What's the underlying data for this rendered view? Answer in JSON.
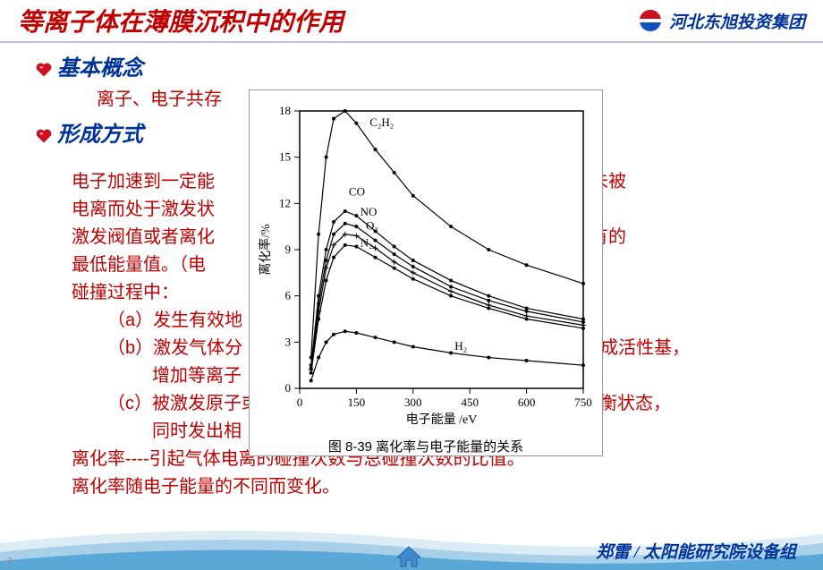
{
  "header": {
    "title": "等离子体在薄膜沉积中的作用",
    "company": "河北东旭投资集团"
  },
  "sections": {
    "s1": {
      "title": "基本概念",
      "line1": "离子、电子共存"
    },
    "s2": {
      "title": "形成方式",
      "l1a": "电子加速到一定能",
      "l1b": "离或者激发（未被",
      "l2": "电离而处于激发状",
      "l3a": "激发阀值或者离化",
      "l3b": "电离的电子具有的",
      "l4": "最低能量值。（电",
      "l5": "碰撞过程中：",
      "l6": "（a）发生有效地",
      "l7a": "（b）激发气体分",
      "l7b": "子等，形成活性基，",
      "l8": "增加等离子",
      "l9a": "（c）被激发原子或",
      "l9b": "，返回平衡状态，",
      "l10": "同时发出相",
      "l11": "离化率----引起气体电离的碰撞次数与总碰撞次数的比值。",
      "l12": "离化率随电子能量的不同而变化。"
    }
  },
  "chart": {
    "caption": "图 8-39  离化率与电子能量的关系",
    "xlabel": "电子能量 /eV",
    "ylabel": "离化率/%",
    "xlim": [
      0,
      750
    ],
    "ylim": [
      0,
      18
    ],
    "xticks": [
      0,
      150,
      300,
      450,
      600,
      750
    ],
    "yticks": [
      0,
      3,
      6,
      9,
      12,
      15,
      18
    ],
    "background": "#ffffff",
    "axis_color": "#000000",
    "series": [
      {
        "name": "C2H2",
        "label": "C₂H₂",
        "label_pos": [
          185,
          17
        ],
        "marker": "dot",
        "pts": [
          [
            30,
            2
          ],
          [
            50,
            10
          ],
          [
            70,
            15
          ],
          [
            90,
            17.5
          ],
          [
            120,
            18
          ],
          [
            150,
            17.2
          ],
          [
            200,
            15.5
          ],
          [
            250,
            14
          ],
          [
            300,
            12.5
          ],
          [
            400,
            10.5
          ],
          [
            500,
            9
          ],
          [
            600,
            8
          ],
          [
            750,
            6.8
          ]
        ]
      },
      {
        "name": "CO",
        "label": "CO",
        "label_pos": [
          130,
          12.5
        ],
        "marker": "dot",
        "pts": [
          [
            30,
            1.5
          ],
          [
            50,
            6
          ],
          [
            70,
            9
          ],
          [
            90,
            10.8
          ],
          [
            120,
            11.5
          ],
          [
            150,
            11.2
          ],
          [
            200,
            10.2
          ],
          [
            250,
            9.2
          ],
          [
            300,
            8.3
          ],
          [
            400,
            7
          ],
          [
            500,
            6
          ],
          [
            600,
            5.2
          ],
          [
            750,
            4.5
          ]
        ]
      },
      {
        "name": "NO",
        "label": "NO",
        "label_pos": [
          160,
          11.2
        ],
        "marker": "dot",
        "pts": [
          [
            30,
            1.3
          ],
          [
            50,
            5.5
          ],
          [
            70,
            8.3
          ],
          [
            90,
            10
          ],
          [
            120,
            10.7
          ],
          [
            150,
            10.5
          ],
          [
            200,
            9.6
          ],
          [
            250,
            8.7
          ],
          [
            300,
            7.9
          ],
          [
            400,
            6.6
          ],
          [
            500,
            5.7
          ],
          [
            600,
            5
          ],
          [
            750,
            4.3
          ]
        ]
      },
      {
        "name": "O2",
        "label": "O₂",
        "label_pos": [
          175,
          10.3
        ],
        "marker": "plus",
        "pts": [
          [
            30,
            1.2
          ],
          [
            50,
            5
          ],
          [
            70,
            7.8
          ],
          [
            90,
            9.3
          ],
          [
            120,
            10
          ],
          [
            150,
            9.9
          ],
          [
            200,
            9.1
          ],
          [
            250,
            8.2
          ],
          [
            300,
            7.5
          ],
          [
            400,
            6.3
          ],
          [
            500,
            5.4
          ],
          [
            600,
            4.7
          ],
          [
            750,
            4.1
          ]
        ]
      },
      {
        "name": "N2",
        "label": "N₂",
        "label_pos": [
          160,
          9.2
        ],
        "marker": "dot",
        "pts": [
          [
            30,
            1
          ],
          [
            50,
            4.5
          ],
          [
            70,
            7
          ],
          [
            90,
            8.5
          ],
          [
            120,
            9.3
          ],
          [
            150,
            9.2
          ],
          [
            200,
            8.5
          ],
          [
            250,
            7.8
          ],
          [
            300,
            7.1
          ],
          [
            400,
            6
          ],
          [
            500,
            5.2
          ],
          [
            600,
            4.5
          ],
          [
            750,
            3.9
          ]
        ]
      },
      {
        "name": "H2",
        "label": "H₂",
        "label_pos": [
          410,
          2.5
        ],
        "marker": "dot",
        "pts": [
          [
            30,
            0.5
          ],
          [
            50,
            2
          ],
          [
            70,
            3
          ],
          [
            90,
            3.5
          ],
          [
            120,
            3.7
          ],
          [
            150,
            3.6
          ],
          [
            200,
            3.3
          ],
          [
            250,
            3
          ],
          [
            300,
            2.7
          ],
          [
            400,
            2.3
          ],
          [
            500,
            2
          ],
          [
            600,
            1.8
          ],
          [
            750,
            1.5
          ]
        ]
      }
    ]
  },
  "footer": {
    "text": "郑雷 / 太阳能研究院设备组",
    "page": "2"
  },
  "colors": {
    "red": "#c00000",
    "blue": "#003399",
    "wave1": "#dcecf5",
    "wave2": "#a8d0e8",
    "wave3": "#5aa8d8"
  }
}
